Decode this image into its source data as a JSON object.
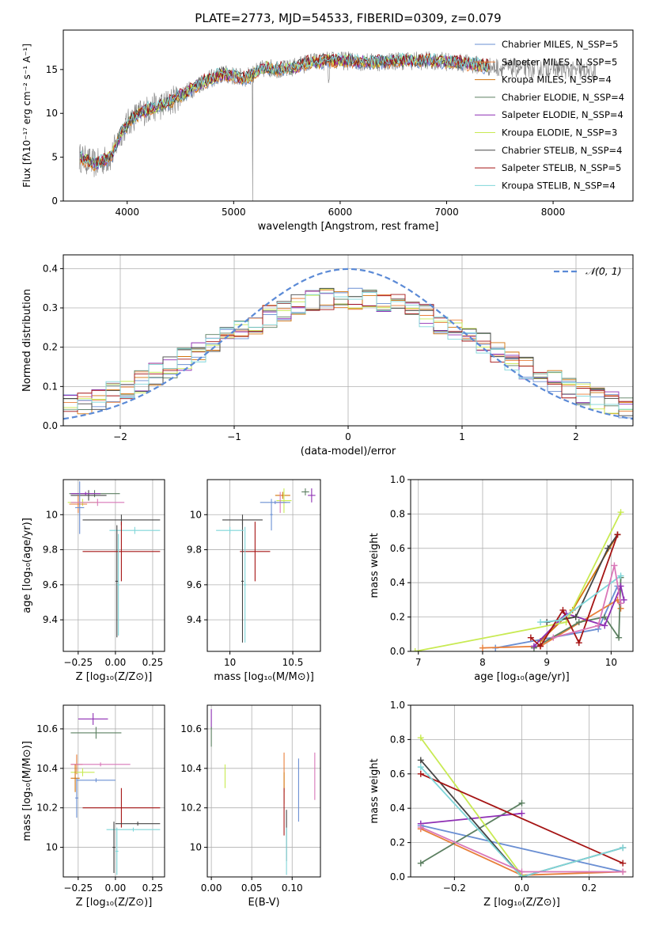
{
  "figure": {
    "title": "PLATE=2773, MJD=54533, FIBERID=0309, z=0.079"
  },
  "chart_data": [
    {
      "id": "spectrum",
      "type": "line",
      "xlabel": "wavelength [Angstrom, rest frame]",
      "ylabel": "Flux [fλ10⁻¹⁷ erg cm⁻² s⁻¹ A⁻¹]",
      "xlim": [
        3400,
        8750
      ],
      "ylim": [
        0,
        19.5
      ],
      "xticks": [
        4000,
        5000,
        6000,
        7000,
        8000
      ],
      "yticks": [
        0,
        5,
        10,
        15
      ],
      "grid": false,
      "legend_position": "upper-right",
      "data_color": "#808080",
      "legend": [
        {
          "name": "Chabrier MILES, N_SSP=5",
          "color": "#6a8fd3"
        },
        {
          "name": "Salpeter MILES, N_SSP=5",
          "color": "#e87f3a"
        },
        {
          "name": "Kroupa MILES, N_SSP=4",
          "color": "#d3730c"
        },
        {
          "name": "Chabrier ELODIE, N_SSP=4",
          "color": "#5b7f60"
        },
        {
          "name": "Salpeter ELODIE, N_SSP=4",
          "color": "#8e2fb4"
        },
        {
          "name": "Kroupa ELODIE, N_SSP=3",
          "color": "#c8ea52"
        },
        {
          "name": "Chabrier STELIB, N_SSP=4",
          "color": "#454545"
        },
        {
          "name": "Salpeter STELIB, N_SSP=5",
          "color": "#a51414"
        },
        {
          "name": "Kroupa STELIB, N_SSP=4",
          "color": "#7fd6d9"
        }
      ],
      "continuum": {
        "x": [
          3550,
          3700,
          3850,
          3950,
          4050,
          4200,
          4350,
          4500,
          4700,
          4900,
          5100,
          5300,
          5500,
          5700,
          5900,
          6100,
          6300,
          6500,
          6700,
          6900,
          7100,
          7300,
          7410,
          7800,
          8000,
          8200,
          8400
        ],
        "y": [
          5.0,
          4.2,
          5.0,
          8.0,
          9.5,
          10.5,
          11.0,
          12.0,
          13.5,
          14.5,
          14.0,
          15.2,
          15.0,
          15.8,
          16.0,
          16.0,
          15.8,
          16.0,
          16.0,
          16.0,
          15.8,
          15.5,
          15.3,
          15.0,
          15.2,
          14.8,
          14.8
        ]
      }
    },
    {
      "id": "residuals",
      "type": "histogram",
      "xlabel": "(data-model)/error",
      "ylabel": "Normed distribution",
      "xlim": [
        -2.5,
        2.5
      ],
      "ylim": [
        0,
        0.435
      ],
      "xticks": [
        -2,
        -1,
        0,
        1,
        2
      ],
      "yticks": [
        0.0,
        0.1,
        0.2,
        0.3,
        0.4
      ],
      "grid": true,
      "bin_width": 0.125,
      "legend": [
        {
          "name": "𝒩(0, 1)",
          "color": "#5b8ad6",
          "style": "dashed"
        }
      ],
      "legend_position": "upper-right",
      "gaussian": {
        "mean": 0,
        "sigma": 1
      }
    },
    {
      "id": "age-vs-Z",
      "type": "errorbar",
      "xlabel": "Z [log₁₀(Z/Z⊙)]",
      "ylabel": "age  [log₁₀(age/yr)]",
      "xlim": [
        -0.35,
        0.33
      ],
      "ylim": [
        9.22,
        10.2
      ],
      "xticks": [
        -0.25,
        0.0,
        0.25
      ],
      "xticklabels": [
        "−0.25",
        "0.00",
        "0.25"
      ],
      "yticks": [
        9.4,
        9.6,
        9.8,
        10.0
      ],
      "grid": true,
      "points": [
        {
          "x": -0.14,
          "xerr": 0.17,
          "y": 10.12,
          "yerr": 0.02,
          "color": "#5b7f60"
        },
        {
          "x": -0.18,
          "xerr": 0.12,
          "y": 10.11,
          "yerr": 0.03,
          "color": "#454545"
        },
        {
          "x": -0.2,
          "xerr": 0.1,
          "y": 10.12,
          "yerr": 0.01,
          "color": "#8e2fb4"
        },
        {
          "x": -0.22,
          "xerr": 0.1,
          "y": 10.07,
          "yerr": 0.02,
          "color": "#c8ea52"
        },
        {
          "x": -0.25,
          "xerr": 0.06,
          "y": 10.06,
          "yerr": 0.05,
          "color": "#e87f3a"
        },
        {
          "x": -0.24,
          "xerr": 0.03,
          "y": 10.04,
          "yerr": 0.15,
          "color": "#6a8fd3"
        },
        {
          "x": -0.12,
          "xerr": 0.18,
          "y": 10.07,
          "yerr": 0.02,
          "color": "#d977b8"
        },
        {
          "x": 0.13,
          "xerr": 0.17,
          "y": 9.91,
          "yerr": 0.02,
          "color": "#7fd6d9"
        },
        {
          "x": 0.04,
          "xerr": 0.26,
          "y": 9.97,
          "yerr": 0.03,
          "color": "#454545"
        },
        {
          "x": 0.01,
          "xerr": 0.01,
          "y": 9.62,
          "yerr": 0.32,
          "color": "#454545"
        },
        {
          "x": 0.04,
          "xerr": 0.26,
          "y": 9.79,
          "yerr": 0.17,
          "color": "#a51414"
        },
        {
          "x": 0.02,
          "xerr": 0.01,
          "y": 9.6,
          "yerr": 0.29,
          "color": "#7fd6d9"
        }
      ]
    },
    {
      "id": "age-vs-mass",
      "type": "errorbar",
      "xlabel": "mass [log₁₀(M/M⊙)]",
      "xlim": [
        9.82,
        10.72
      ],
      "ylim": [
        9.22,
        10.2
      ],
      "xticks": [
        10.0,
        10.5
      ],
      "xticklabels": [
        "10",
        "10.5"
      ],
      "yticks": [
        9.4,
        9.6,
        9.8,
        10.0
      ],
      "grid": true,
      "points": [
        {
          "x": 10.6,
          "xerr": 0.03,
          "y": 10.13,
          "yerr": 0.02,
          "color": "#5b7f60"
        },
        {
          "x": 10.65,
          "xerr": 0.03,
          "y": 10.11,
          "yerr": 0.04,
          "color": "#8e2fb4"
        },
        {
          "x": 10.42,
          "xerr": 0.06,
          "y": 10.11,
          "yerr": 0.02,
          "color": "#d3730c"
        },
        {
          "x": 10.43,
          "xerr": 0.06,
          "y": 10.08,
          "yerr": 0.07,
          "color": "#c8ea52"
        },
        {
          "x": 10.4,
          "xerr": 0.05,
          "y": 10.07,
          "yerr": 0.06,
          "color": "#d977b8"
        },
        {
          "x": 10.36,
          "xerr": 0.12,
          "y": 10.07,
          "yerr": 0.01,
          "color": "#6a8fd3"
        },
        {
          "x": 10.33,
          "xerr": 0.01,
          "y": 10.0,
          "yerr": 0.09,
          "color": "#6a8fd3"
        },
        {
          "x": 10.2,
          "xerr": 0.12,
          "y": 9.79,
          "yerr": 0.17,
          "color": "#a51414"
        },
        {
          "x": 10.1,
          "xerr": 0.16,
          "y": 9.97,
          "yerr": 0.03,
          "color": "#454545"
        },
        {
          "x": 10.1,
          "xerr": 0.01,
          "y": 9.62,
          "yerr": 0.35,
          "color": "#454545"
        },
        {
          "x": 10.0,
          "xerr": 0.11,
          "y": 9.91,
          "yerr": 0.02,
          "color": "#7fd6d9"
        },
        {
          "x": 10.12,
          "xerr": 0.01,
          "y": 9.6,
          "yerr": 0.33,
          "color": "#7fd6d9"
        }
      ]
    },
    {
      "id": "weight-vs-age",
      "type": "line",
      "xlabel": "age  [log₁₀(age/yr)]",
      "ylabel": "mass weight",
      "xlim": [
        6.88,
        10.34
      ],
      "ylim": [
        0,
        1.0
      ],
      "xticks": [
        7,
        8,
        9,
        10
      ],
      "yticks": [
        0.0,
        0.2,
        0.4,
        0.6,
        0.8,
        1.0
      ],
      "grid": true,
      "series": [
        {
          "color": "#6a8fd3",
          "x": [
            8.2,
            9.8,
            10.1
          ],
          "y": [
            0.02,
            0.13,
            0.38
          ]
        },
        {
          "color": "#e87f3a",
          "x": [
            8.0,
            8.9,
            10.1,
            10.15
          ],
          "y": [
            0.02,
            0.03,
            0.3,
            0.25
          ]
        },
        {
          "color": "#d3730c",
          "x": [
            8.9,
            9.4,
            10.1
          ],
          "y": [
            0.06,
            0.24,
            0.68
          ]
        },
        {
          "color": "#5b7f60",
          "x": [
            8.8,
            9.5,
            9.9,
            10.12,
            10.15
          ],
          "y": [
            0.02,
            0.17,
            0.2,
            0.08,
            0.43
          ]
        },
        {
          "color": "#8e2fb4",
          "x": [
            8.8,
            9.3,
            9.9,
            10.15,
            10.2
          ],
          "y": [
            0.03,
            0.22,
            0.15,
            0.38,
            0.3
          ]
        },
        {
          "color": "#c8ea52",
          "x": [
            6.95,
            9.3,
            10.15
          ],
          "y": [
            0.0,
            0.17,
            0.81
          ]
        },
        {
          "color": "#454545",
          "x": [
            9.0,
            9.45,
            9.95,
            10.1
          ],
          "y": [
            0.17,
            0.2,
            0.6,
            0.68
          ]
        },
        {
          "color": "#a51414",
          "x": [
            8.75,
            8.9,
            9.25,
            9.5,
            10.1
          ],
          "y": [
            0.08,
            0.03,
            0.24,
            0.05,
            0.68
          ]
        },
        {
          "color": "#7fd6d9",
          "x": [
            8.9,
            9.2,
            10.15
          ],
          "y": [
            0.17,
            0.18,
            0.44
          ]
        },
        {
          "color": "#d977b8",
          "x": [
            9.1,
            9.8,
            10.05,
            10.15
          ],
          "y": [
            0.08,
            0.15,
            0.5,
            0.28
          ]
        }
      ]
    },
    {
      "id": "mass-vs-Z",
      "type": "errorbar",
      "xlabel": "Z [log₁₀(Z/Z⊙)]",
      "ylabel": "mass [log₁₀(M/M⊙)]",
      "xlim": [
        -0.35,
        0.33
      ],
      "ylim": [
        9.85,
        10.72
      ],
      "xticks": [
        -0.25,
        0.0,
        0.25
      ],
      "xticklabels": [
        "−0.25",
        "0.00",
        "0.25"
      ],
      "yticks": [
        10.0,
        10.2,
        10.4,
        10.6
      ],
      "grid": true,
      "points": [
        {
          "x": -0.15,
          "xerr": 0.1,
          "y": 10.65,
          "yerr": 0.03,
          "color": "#8e2fb4"
        },
        {
          "x": -0.13,
          "xerr": 0.17,
          "y": 10.58,
          "yerr": 0.03,
          "color": "#5b7f60"
        },
        {
          "x": -0.26,
          "xerr": 0.04,
          "y": 10.42,
          "yerr": 0.05,
          "color": "#e87f3a"
        },
        {
          "x": -0.1,
          "xerr": 0.2,
          "y": 10.42,
          "yerr": 0.01,
          "color": "#d977b8"
        },
        {
          "x": -0.22,
          "xerr": 0.08,
          "y": 10.38,
          "yerr": 0.02,
          "color": "#c8ea52"
        },
        {
          "x": -0.27,
          "xerr": 0.03,
          "y": 10.35,
          "yerr": 0.07,
          "color": "#d3730c"
        },
        {
          "x": -0.13,
          "xerr": 0.13,
          "y": 10.34,
          "yerr": 0.01,
          "color": "#6a8fd3"
        },
        {
          "x": -0.26,
          "xerr": 0.01,
          "y": 10.25,
          "yerr": 0.1,
          "color": "#6a8fd3"
        },
        {
          "x": 0.04,
          "xerr": 0.26,
          "y": 10.2,
          "yerr": 0.1,
          "color": "#a51414"
        },
        {
          "x": 0.15,
          "xerr": 0.15,
          "y": 10.12,
          "yerr": 0.01,
          "color": "#454545"
        },
        {
          "x": 0.12,
          "xerr": 0.18,
          "y": 10.09,
          "yerr": 0.01,
          "color": "#7fd6d9"
        },
        {
          "x": -0.01,
          "xerr": 0.01,
          "y": 10.0,
          "yerr": 0.13,
          "color": "#454545"
        },
        {
          "x": 0.01,
          "xerr": 0.01,
          "y": 9.98,
          "yerr": 0.12,
          "color": "#7fd6d9"
        }
      ]
    },
    {
      "id": "mass-vs-ebv",
      "type": "errorbar",
      "xlabel": "E(B-V)",
      "xlim": [
        -0.005,
        0.135
      ],
      "ylim": [
        9.85,
        10.72
      ],
      "xticks": [
        0.0,
        0.05,
        0.1
      ],
      "xticklabels": [
        "0.00",
        "0.05",
        "0.10"
      ],
      "yticks": [
        10.0,
        10.2,
        10.4,
        10.6
      ],
      "grid": true,
      "points": [
        {
          "x": 0.0,
          "y": 10.65,
          "yerr": 0.05,
          "color": "#8e2fb4"
        },
        {
          "x": 0.0,
          "y": 10.56,
          "yerr": 0.05,
          "color": "#5b7f60"
        },
        {
          "x": 0.017,
          "y": 10.36,
          "yerr": 0.06,
          "color": "#c8ea52"
        },
        {
          "x": 0.09,
          "y": 10.38,
          "yerr": 0.1,
          "color": "#e87f3a"
        },
        {
          "x": 0.09,
          "y": 10.3,
          "yerr": 0.08,
          "color": "#d3730c"
        },
        {
          "x": 0.09,
          "y": 10.18,
          "yerr": 0.12,
          "color": "#a51414"
        },
        {
          "x": 0.093,
          "y": 10.06,
          "yerr": 0.13,
          "color": "#454545"
        },
        {
          "x": 0.093,
          "y": 9.98,
          "yerr": 0.12,
          "color": "#7fd6d9"
        },
        {
          "x": 0.108,
          "y": 10.29,
          "yerr": 0.16,
          "color": "#6a8fd3"
        },
        {
          "x": 0.128,
          "y": 10.36,
          "yerr": 0.12,
          "color": "#d977b8"
        }
      ]
    },
    {
      "id": "weight-vs-Z",
      "type": "line",
      "xlabel": "Z [log₁₀(Z/Z⊙)]",
      "ylabel": "mass weight",
      "xlim": [
        -0.33,
        0.33
      ],
      "ylim": [
        0,
        1.0
      ],
      "xticks": [
        -0.2,
        0.0,
        0.2
      ],
      "xticklabels": [
        "−0.2",
        "0.0",
        "0.2"
      ],
      "yticks": [
        0.0,
        0.2,
        0.4,
        0.6,
        0.8,
        1.0
      ],
      "grid": true,
      "series": [
        {
          "color": "#6a8fd3",
          "x": [
            -0.3,
            0.3
          ],
          "y": [
            0.3,
            0.03
          ]
        },
        {
          "color": "#e87f3a",
          "x": [
            -0.3,
            0.0,
            0.3
          ],
          "y": [
            0.28,
            0.01,
            0.03
          ]
        },
        {
          "color": "#5b7f60",
          "x": [
            -0.3,
            0.0
          ],
          "y": [
            0.08,
            0.43
          ]
        },
        {
          "color": "#8e2fb4",
          "x": [
            -0.3,
            0.0
          ],
          "y": [
            0.31,
            0.37
          ]
        },
        {
          "color": "#c8ea52",
          "x": [
            -0.3,
            0.0
          ],
          "y": [
            0.81,
            0.01
          ]
        },
        {
          "color": "#454545",
          "x": [
            -0.3,
            0.0,
            0.3
          ],
          "y": [
            0.68,
            0.0,
            0.17
          ]
        },
        {
          "color": "#a51414",
          "x": [
            -0.3,
            0.3
          ],
          "y": [
            0.6,
            0.08
          ]
        },
        {
          "color": "#7fd6d9",
          "x": [
            -0.3,
            0.0,
            0.3
          ],
          "y": [
            0.64,
            0.0,
            0.17
          ]
        },
        {
          "color": "#d977b8",
          "x": [
            -0.3,
            0.0,
            0.3
          ],
          "y": [
            0.29,
            0.03,
            0.03
          ]
        }
      ]
    }
  ]
}
